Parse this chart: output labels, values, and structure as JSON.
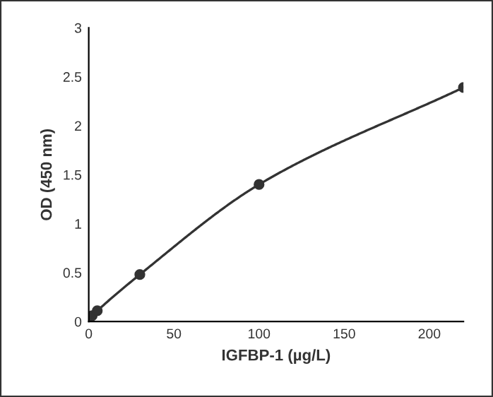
{
  "chart_data": {
    "type": "line",
    "xlabel": "IGFBP-1 (µg/L)",
    "ylabel": "OD (450 nm)",
    "x": [
      0,
      2,
      5,
      30,
      100,
      220
    ],
    "series": [
      {
        "color": "#333333",
        "values": [
          0.04,
          0.06,
          0.11,
          0.48,
          1.4,
          2.39
        ]
      }
    ],
    "xlim": [
      0,
      220
    ],
    "xticks": [
      0,
      50,
      100,
      150,
      200
    ],
    "ylim": [
      0,
      3
    ],
    "yticks": [
      0,
      0.5,
      1,
      1.5,
      2,
      2.5,
      3
    ],
    "marker": "circle",
    "line_style": "solid",
    "grid": false,
    "legend": false
  }
}
